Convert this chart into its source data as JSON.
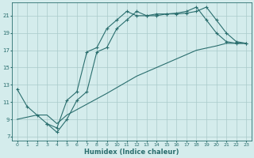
{
  "xlabel": "Humidex (Indice chaleur)",
  "bg_color": "#d4ecec",
  "grid_color": "#aacaca",
  "line_color": "#2a6e6e",
  "xlim": [
    -0.5,
    23.5
  ],
  "ylim": [
    6.5,
    22.5
  ],
  "xticks": [
    0,
    1,
    2,
    3,
    4,
    5,
    6,
    7,
    8,
    9,
    10,
    11,
    12,
    13,
    14,
    15,
    16,
    17,
    18,
    19,
    20,
    21,
    22,
    23
  ],
  "yticks": [
    7,
    9,
    11,
    13,
    15,
    17,
    19,
    21
  ],
  "line1_x": [
    0,
    1,
    2,
    3,
    4,
    5,
    6,
    7,
    8,
    9,
    10,
    11,
    12,
    13,
    14,
    15,
    16,
    17,
    18,
    19,
    20,
    21,
    22,
    23
  ],
  "line1_y": [
    12.5,
    10.5,
    9.5,
    8.5,
    8.0,
    11.2,
    12.2,
    16.8,
    17.3,
    19.5,
    20.5,
    21.5,
    21.0,
    21.0,
    21.2,
    21.2,
    21.3,
    21.5,
    22.0,
    20.5,
    19.0,
    18.0,
    17.8,
    17.8
  ],
  "line2_x": [
    3,
    4,
    5,
    6,
    7,
    8,
    9,
    10,
    11,
    12,
    13,
    14,
    15,
    16,
    17,
    18,
    19,
    20,
    21,
    22,
    23
  ],
  "line2_y": [
    8.5,
    7.5,
    9.0,
    11.2,
    12.2,
    16.8,
    17.3,
    19.5,
    20.5,
    21.5,
    21.0,
    21.0,
    21.2,
    21.2,
    21.3,
    21.5,
    22.0,
    20.5,
    19.0,
    18.0,
    17.8
  ],
  "line3_x": [
    0,
    2,
    3,
    4,
    5,
    9,
    12,
    15,
    18,
    20,
    21,
    22,
    23
  ],
  "line3_y": [
    9.0,
    9.5,
    9.5,
    8.5,
    9.5,
    12.0,
    14.0,
    15.5,
    17.0,
    17.5,
    17.8,
    17.8,
    17.8
  ]
}
